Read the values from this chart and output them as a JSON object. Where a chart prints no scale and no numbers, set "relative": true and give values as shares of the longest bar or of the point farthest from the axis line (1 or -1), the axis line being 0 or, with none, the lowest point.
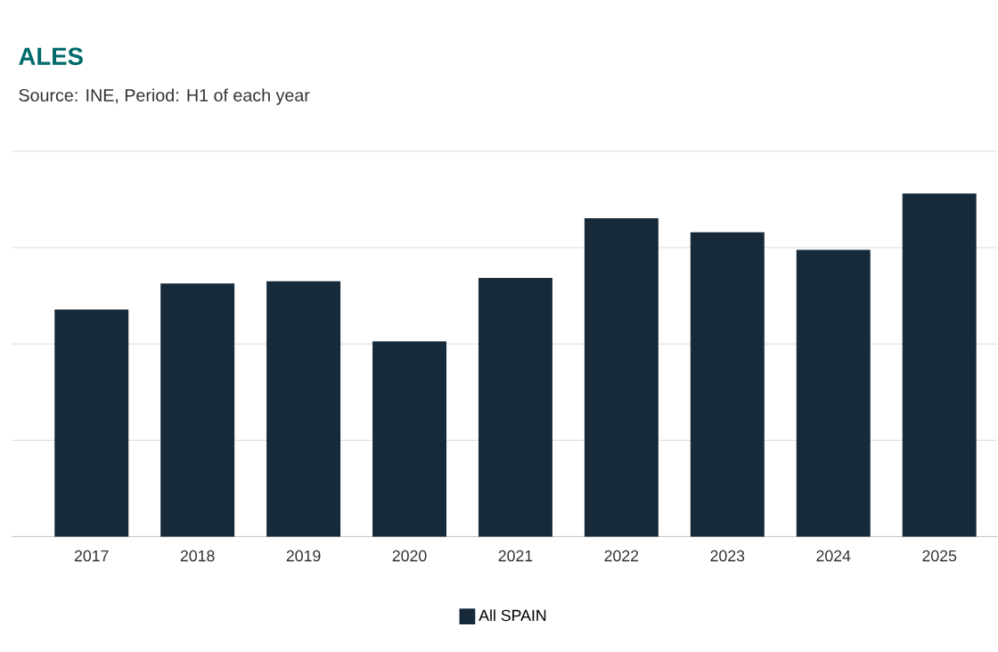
{
  "chart_data": {
    "type": "bar",
    "title": "ALES",
    "subtitle": "Source: INE, Period: H1 of each year",
    "categories": [
      "2017",
      "2018",
      "2019",
      "2020",
      "2021",
      "2022",
      "2023",
      "2024",
      "2025"
    ],
    "series": [
      {
        "name": "All SPAIN",
        "color": "#172a3a",
        "values": [
          0.662,
          0.738,
          0.744,
          0.569,
          0.754,
          0.928,
          0.887,
          0.836,
          1
        ]
      }
    ],
    "relative": true,
    "grid": "y",
    "legend": "bottom"
  }
}
